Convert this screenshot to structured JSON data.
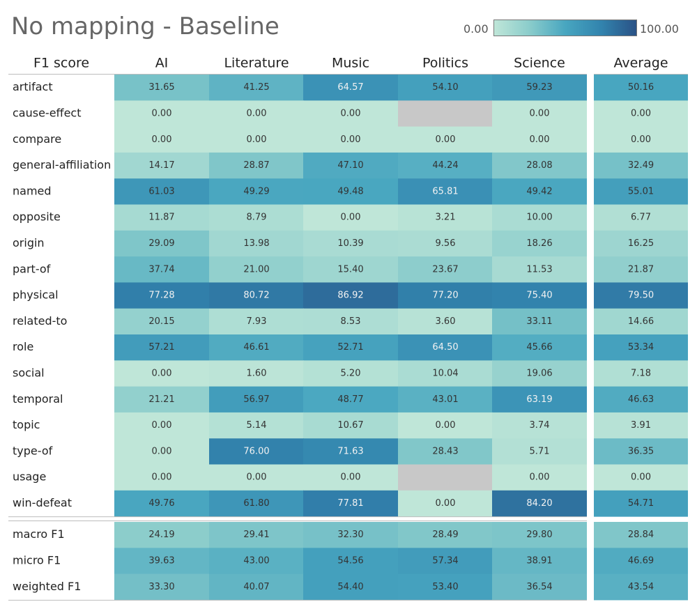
{
  "chart_data": {
    "type": "heatmap",
    "title": "No mapping - Baseline",
    "legend": {
      "min_label": "0.00",
      "max_label": "100.00",
      "placement": "top-right",
      "color_low": "#bfe6d8",
      "color_high": "#2a5286"
    },
    "corner_label": "F1 score",
    "columns": [
      "AI",
      "Literature",
      "Music",
      "Politics",
      "Science"
    ],
    "average_label": "Average",
    "rows": [
      {
        "label": "artifact",
        "values": [
          "31.65",
          "41.25",
          "64.57",
          "54.10",
          "59.23"
        ],
        "average": "50.16"
      },
      {
        "label": "cause-effect",
        "values": [
          "0.00",
          "0.00",
          "0.00",
          null,
          "0.00"
        ],
        "average": "0.00"
      },
      {
        "label": "compare",
        "values": [
          "0.00",
          "0.00",
          "0.00",
          "0.00",
          "0.00"
        ],
        "average": "0.00"
      },
      {
        "label": "general-affiliation",
        "values": [
          "14.17",
          "28.87",
          "47.10",
          "44.24",
          "28.08"
        ],
        "average": "32.49"
      },
      {
        "label": "named",
        "values": [
          "61.03",
          "49.29",
          "49.48",
          "65.81",
          "49.42"
        ],
        "average": "55.01"
      },
      {
        "label": "opposite",
        "values": [
          "11.87",
          "8.79",
          "0.00",
          "3.21",
          "10.00"
        ],
        "average": "6.77"
      },
      {
        "label": "origin",
        "values": [
          "29.09",
          "13.98",
          "10.39",
          "9.56",
          "18.26"
        ],
        "average": "16.25"
      },
      {
        "label": "part-of",
        "values": [
          "37.74",
          "21.00",
          "15.40",
          "23.67",
          "11.53"
        ],
        "average": "21.87"
      },
      {
        "label": "physical",
        "values": [
          "77.28",
          "80.72",
          "86.92",
          "77.20",
          "75.40"
        ],
        "average": "79.50"
      },
      {
        "label": "related-to",
        "values": [
          "20.15",
          "7.93",
          "8.53",
          "3.60",
          "33.11"
        ],
        "average": "14.66"
      },
      {
        "label": "role",
        "values": [
          "57.21",
          "46.61",
          "52.71",
          "64.50",
          "45.66"
        ],
        "average": "53.34"
      },
      {
        "label": "social",
        "values": [
          "0.00",
          "1.60",
          "5.20",
          "10.04",
          "19.06"
        ],
        "average": "7.18"
      },
      {
        "label": "temporal",
        "values": [
          "21.21",
          "56.97",
          "48.77",
          "43.01",
          "63.19"
        ],
        "average": "46.63"
      },
      {
        "label": "topic",
        "values": [
          "0.00",
          "5.14",
          "10.67",
          "0.00",
          "3.74"
        ],
        "average": "3.91"
      },
      {
        "label": "type-of",
        "values": [
          "0.00",
          "76.00",
          "71.63",
          "28.43",
          "5.71"
        ],
        "average": "36.35"
      },
      {
        "label": "usage",
        "values": [
          "0.00",
          "0.00",
          "0.00",
          null,
          "0.00"
        ],
        "average": "0.00"
      },
      {
        "label": "win-defeat",
        "values": [
          "49.76",
          "61.80",
          "77.81",
          "0.00",
          "84.20"
        ],
        "average": "54.71"
      }
    ],
    "summary_rows": [
      {
        "label": "macro F1",
        "values": [
          "24.19",
          "29.41",
          "32.30",
          "28.49",
          "29.80"
        ],
        "average": "28.84"
      },
      {
        "label": "micro F1",
        "values": [
          "39.63",
          "43.00",
          "54.56",
          "57.34",
          "38.91"
        ],
        "average": "46.69"
      },
      {
        "label": "weighted F1",
        "values": [
          "33.30",
          "40.07",
          "54.40",
          "53.40",
          "36.54"
        ],
        "average": "43.54"
      }
    ],
    "missing_color": "#c8c8c8"
  }
}
